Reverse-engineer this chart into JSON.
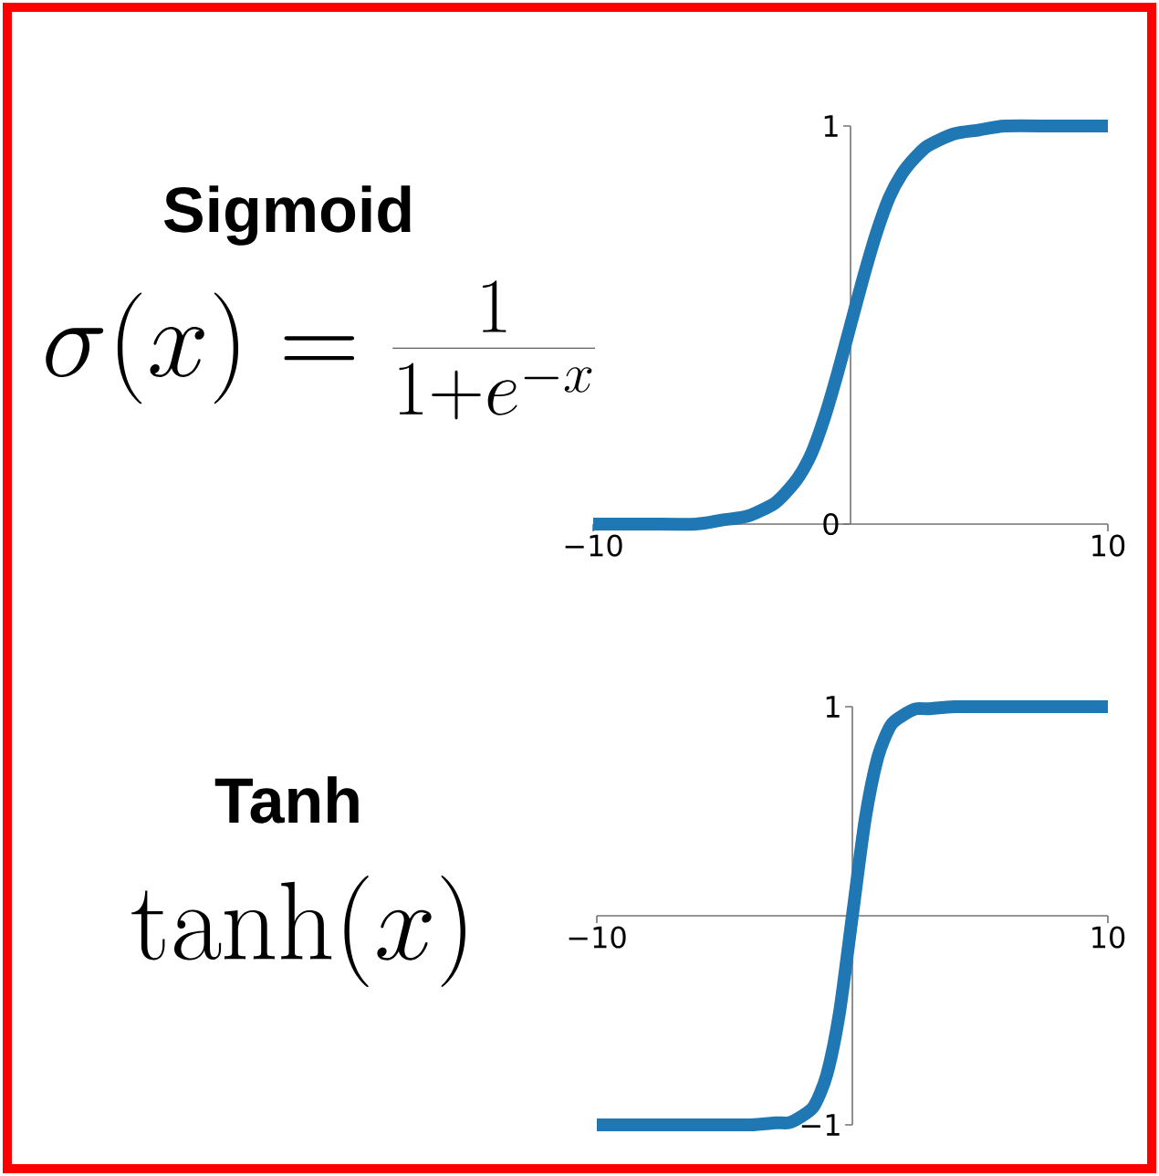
{
  "chart_data": [
    {
      "type": "line",
      "title": "Sigmoid",
      "subtitle": "\\sigma(x) = \\frac{1}{1+e^{-x}}",
      "color": "#1f77b4",
      "x": [
        -10,
        -8,
        -6,
        -5,
        -4,
        -3,
        -2.5,
        -2,
        -1.5,
        -1,
        -0.5,
        0,
        0.5,
        1,
        1.5,
        2,
        2.5,
        3,
        4,
        5,
        6,
        8,
        10
      ],
      "values": [
        0,
        0,
        0,
        0.01,
        0.02,
        0.05,
        0.08,
        0.12,
        0.18,
        0.27,
        0.38,
        0.5,
        0.62,
        0.73,
        0.82,
        0.88,
        0.92,
        0.95,
        0.98,
        0.99,
        1,
        1,
        1
      ],
      "xlim": [
        -10,
        10
      ],
      "xticks": [
        {
          "value": -10,
          "label": "−10"
        },
        10
      ],
      "ylim": [
        0,
        1
      ],
      "yticks": [
        0,
        1
      ]
    },
    {
      "type": "line",
      "title": "Tanh",
      "subtitle": "\\tanh(x)",
      "color": "#1f77b4",
      "x": [
        -10,
        -6,
        -4,
        -3,
        -2.5,
        -2,
        -1.5,
        -1,
        -0.5,
        0,
        0.5,
        1,
        1.5,
        2,
        2.5,
        3,
        4,
        6,
        10
      ],
      "values": [
        -1,
        -1,
        -1,
        -0.99,
        -0.99,
        -0.96,
        -0.91,
        -0.76,
        -0.46,
        0,
        0.46,
        0.76,
        0.91,
        0.96,
        0.99,
        0.99,
        1,
        1,
        1
      ],
      "xlim": [
        -10,
        10
      ],
      "xticks": [
        {
          "value": -10,
          "label": "−10"
        },
        10
      ],
      "ylim": [
        -1,
        1
      ],
      "yticks": [
        {
          "value": -1,
          "label": "−1"
        },
        1
      ]
    }
  ]
}
